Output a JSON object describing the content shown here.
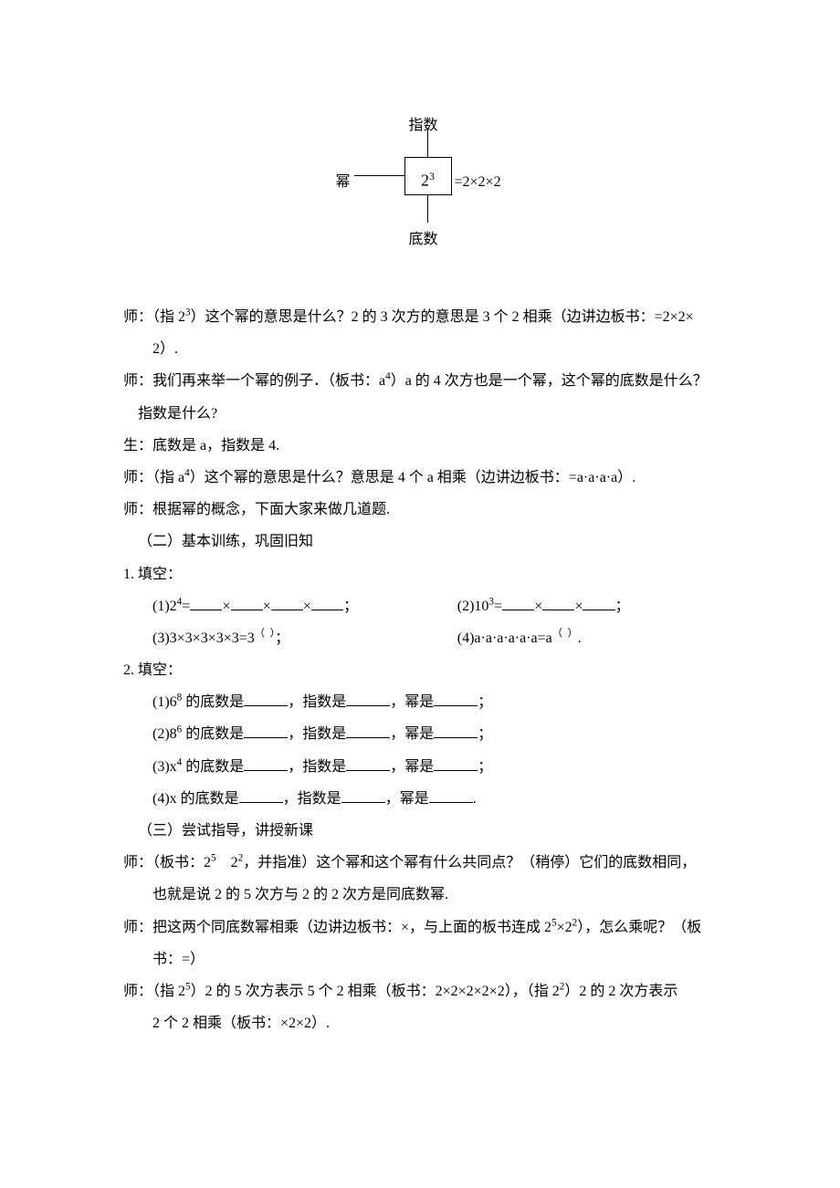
{
  "diagram": {
    "top_label": "指数",
    "left_label": "幂",
    "box_base": "2",
    "box_exp": "3",
    "right_text": "=2×2×2",
    "bottom_label": "底数"
  },
  "paragraphs": {
    "p1a": "师：（指 2",
    "p1a_exp": "3",
    "p1b": "）这个幂的意思是什么？2 的 3 次方的意思是 3 个 2 相乘（边讲边板书：=2×2×",
    "p1c": "2）.",
    "p2a": "师：我们再来举一个幂的例子．（板书：a",
    "p2a_exp": "4",
    "p2b": "）a 的 4 次方也是一个幂，这个幂的底数是什么？",
    "p2c": "指数是什么?",
    "p3": "生：底数是 a，指数是 4.",
    "p4a": "师：（指 a",
    "p4a_exp": "4",
    "p4b": "）这个幂的意思是什么？意思是 4 个 a 相乘（边讲边板书：=a·a·a·a）.",
    "p5": "师：根据幂的概念，下面大家来做几道题.",
    "sec2": "（二）基本训练，巩固旧知",
    "q1": "1. 填空：",
    "q1_1a": "(1)2",
    "q1_1a_exp": "4",
    "q1_1b": "=",
    "q1_1_times": "×",
    "q1_1_semi": "；",
    "q1_2a": "(2)10",
    "q1_2a_exp": "3",
    "q1_2b": "=",
    "q1_3a": "(3)3×3×3×3×3=3",
    "q1_3_exp_l": "（",
    "q1_3_exp_r": "）",
    "q1_3_semi": "；",
    "q1_4a": "(4)a·a·a·a·a·a=a",
    "q1_4_exp_l": "（",
    "q1_4_exp_r": "）",
    "q1_4_end": ".",
    "q2": "2. 填空：",
    "q2_1a": "(1)6",
    "q2_1a_exp": "8",
    "q2_1b": " 的底数是",
    "q2_1c": "，指数是",
    "q2_1d": "，幂是",
    "q2_1e": "；",
    "q2_2a": "(2)8",
    "q2_2a_exp": "6",
    "q2_3a": "(3)x",
    "q2_3a_exp": "4",
    "q2_4a": "(4)x 的底数是",
    "q2_4e": ".",
    "sec3": "（三）尝试指导，讲授新课",
    "p6a": "师：（板书：2",
    "p6a_exp1": "5",
    "p6a_mid": "　2",
    "p6a_exp2": "2",
    "p6b": "，并指准）这个幂和这个幂有什么共同点？（稍停）它们的底数相同，",
    "p6c": "也就是说 2 的 5 次方与 2 的 2 次方是同底数幂.",
    "p7a": "师：把这两个同底数幂相乘（边讲边板书：×，与上面的板书连成 2",
    "p7a_exp1": "5",
    "p7a_mid": "×2",
    "p7a_exp2": "2",
    "p7b": "），怎么乘呢？（板",
    "p7c": "书：=）",
    "p8a": "师：（指 2",
    "p8a_exp1": "5",
    "p8b": "）2 的 5 次方表示 5 个 2 相乘（板书：2×2×2×2×2），（指 2",
    "p8b_exp2": "2",
    "p8c": "）2 的 2 次方表示",
    "p8d": "2 个 2 相乘（板书：×2×2）."
  }
}
